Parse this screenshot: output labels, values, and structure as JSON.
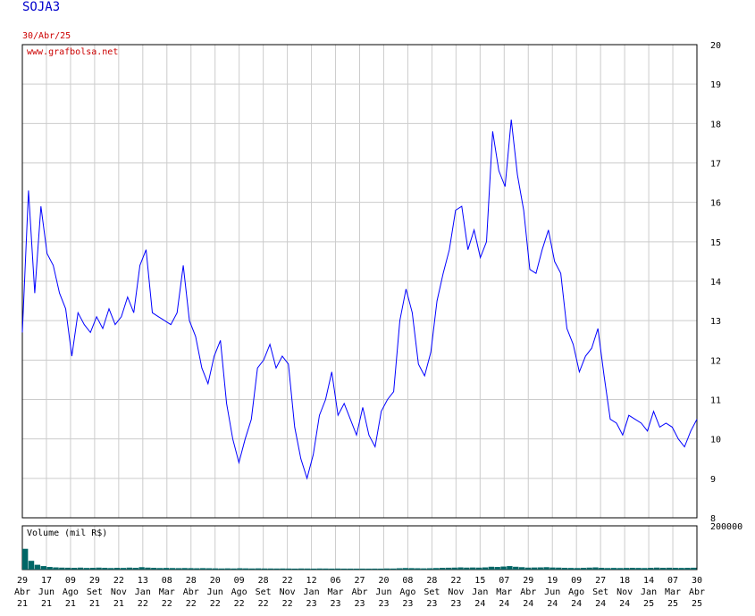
{
  "ticker": "SOJA3",
  "date_label": "30/Abr/25",
  "watermark": "www.grafbolsa.net",
  "volume_label": "Volume (mil R$)",
  "colors": {
    "price_line": "#0000ff",
    "volume": "#006666",
    "grid": "#cccccc",
    "frame": "#000000",
    "date": "#cc0000",
    "title": "#0000cc"
  },
  "chart_data": {
    "type": "line",
    "title": "SOJA3",
    "price": {
      "ylim": [
        8,
        20
      ],
      "y_ticks": [
        8,
        9,
        10,
        11,
        12,
        13,
        14,
        15,
        16,
        17,
        18,
        19,
        20
      ],
      "series": [
        {
          "name": "SOJA3",
          "values": [
            12.7,
            16.3,
            13.7,
            15.9,
            14.7,
            14.4,
            13.7,
            13.3,
            12.1,
            13.2,
            12.9,
            12.7,
            13.1,
            12.8,
            13.3,
            12.9,
            13.1,
            13.6,
            13.2,
            14.4,
            14.8,
            13.2,
            13.1,
            13.0,
            12.9,
            13.2,
            14.4,
            13.0,
            12.6,
            11.8,
            11.4,
            12.1,
            12.5,
            10.9,
            10.0,
            9.4,
            10.0,
            10.5,
            11.8,
            12.0,
            12.4,
            11.8,
            12.1,
            11.9,
            10.3,
            9.5,
            9.0,
            9.6,
            10.6,
            11.0,
            11.7,
            10.6,
            10.9,
            10.5,
            10.1,
            10.8,
            10.1,
            9.8,
            10.7,
            11.0,
            11.2,
            13.0,
            13.8,
            13.2,
            11.9,
            11.6,
            12.2,
            13.5,
            14.2,
            14.8,
            15.8,
            15.9,
            14.8,
            15.3,
            14.6,
            15.0,
            17.8,
            16.8,
            16.4,
            18.1,
            16.7,
            15.8,
            14.3,
            14.2,
            14.8,
            15.3,
            14.5,
            14.2,
            12.8,
            12.4,
            11.7,
            12.1,
            12.3,
            12.8,
            11.6,
            10.5,
            10.4,
            10.1,
            10.6,
            10.5,
            10.4,
            10.2,
            10.7,
            10.3,
            10.4,
            10.3,
            10.0,
            9.8,
            10.2,
            10.5
          ]
        }
      ]
    },
    "volume": {
      "label": "Volume (mil R$)",
      "y_ticks": [
        200000
      ],
      "ylim": [
        0,
        200000
      ],
      "values": [
        95000,
        40000,
        22000,
        16000,
        12000,
        10000,
        9000,
        8500,
        8000,
        9000,
        7500,
        8000,
        9000,
        8000,
        7000,
        8000,
        7500,
        9000,
        8000,
        11000,
        9000,
        8000,
        7000,
        7500,
        7000,
        6500,
        7000,
        6500,
        6000,
        6500,
        6000,
        5500,
        5000,
        5500,
        5000,
        6000,
        5500,
        5000,
        5500,
        5000,
        5000,
        4800,
        5000,
        4800,
        4500,
        5000,
        4800,
        4500,
        5000,
        4800,
        4500,
        4800,
        4500,
        4500,
        4400,
        4500,
        4400,
        4500,
        4400,
        5000,
        4800,
        6000,
        7000,
        6500,
        6000,
        5500,
        6000,
        7000,
        8000,
        8500,
        9000,
        10000,
        9000,
        9500,
        9000,
        10000,
        13000,
        12000,
        14000,
        16000,
        13000,
        11000,
        9000,
        9500,
        10000,
        11000,
        9500,
        9000,
        8000,
        7500,
        7000,
        8000,
        9000,
        10000,
        8000,
        7000,
        7500,
        7000,
        7500,
        8000,
        7500,
        7000,
        8000,
        9000,
        8000,
        8500,
        8000,
        7500,
        8000,
        8500
      ]
    },
    "x_ticks": [
      {
        "day": "29",
        "month": "Abr",
        "year": "21"
      },
      {
        "day": "17",
        "month": "Jun",
        "year": "21"
      },
      {
        "day": "09",
        "month": "Ago",
        "year": "21"
      },
      {
        "day": "29",
        "month": "Set",
        "year": "21"
      },
      {
        "day": "22",
        "month": "Nov",
        "year": "21"
      },
      {
        "day": "13",
        "month": "Jan",
        "year": "22"
      },
      {
        "day": "08",
        "month": "Mar",
        "year": "22"
      },
      {
        "day": "28",
        "month": "Abr",
        "year": "22"
      },
      {
        "day": "20",
        "month": "Jun",
        "year": "22"
      },
      {
        "day": "09",
        "month": "Ago",
        "year": "22"
      },
      {
        "day": "28",
        "month": "Set",
        "year": "22"
      },
      {
        "day": "22",
        "month": "Nov",
        "year": "22"
      },
      {
        "day": "12",
        "month": "Jan",
        "year": "23"
      },
      {
        "day": "06",
        "month": "Mar",
        "year": "23"
      },
      {
        "day": "27",
        "month": "Abr",
        "year": "23"
      },
      {
        "day": "20",
        "month": "Jun",
        "year": "23"
      },
      {
        "day": "08",
        "month": "Ago",
        "year": "23"
      },
      {
        "day": "28",
        "month": "Set",
        "year": "23"
      },
      {
        "day": "22",
        "month": "Nov",
        "year": "23"
      },
      {
        "day": "15",
        "month": "Jan",
        "year": "24"
      },
      {
        "day": "07",
        "month": "Mar",
        "year": "24"
      },
      {
        "day": "29",
        "month": "Abr",
        "year": "24"
      },
      {
        "day": "19",
        "month": "Jun",
        "year": "24"
      },
      {
        "day": "09",
        "month": "Ago",
        "year": "24"
      },
      {
        "day": "27",
        "month": "Set",
        "year": "24"
      },
      {
        "day": "18",
        "month": "Nov",
        "year": "24"
      },
      {
        "day": "14",
        "month": "Jan",
        "year": "25"
      },
      {
        "day": "07",
        "month": "Mar",
        "year": "25"
      },
      {
        "day": "30",
        "month": "Abr",
        "year": "25"
      }
    ],
    "grid": true,
    "legend": "none"
  }
}
